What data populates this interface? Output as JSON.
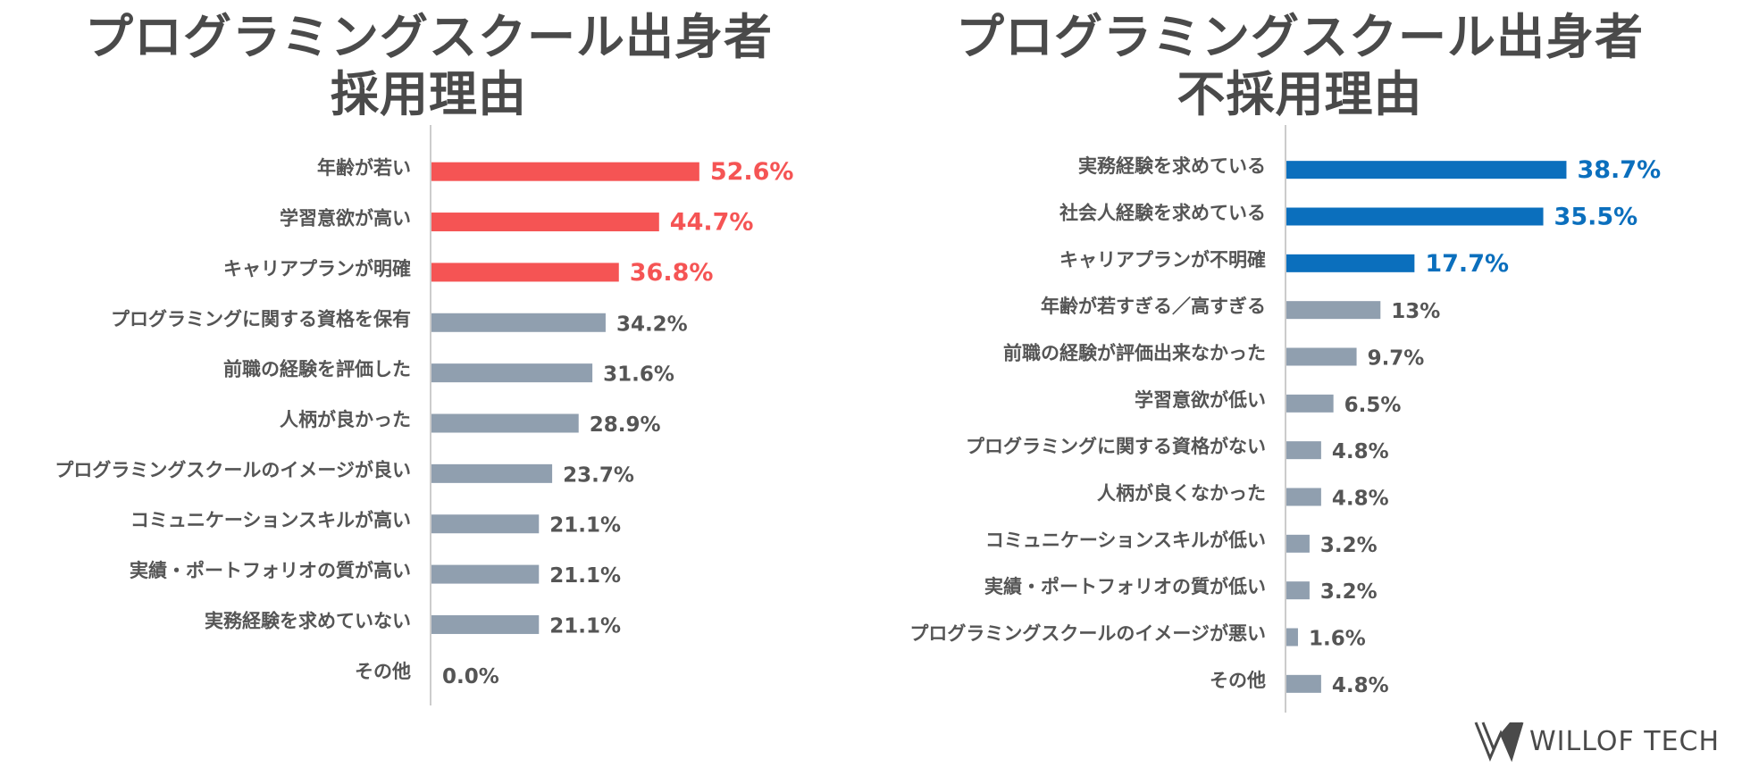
{
  "colors": {
    "grey_bar": "#909faf",
    "red": "#f55454",
    "blue": "#0b6fbd",
    "axis": "#cccccc",
    "label": "#555555"
  },
  "logo": {
    "text": "WILLOF TECH",
    "icon": "willof-tech-logo-icon"
  },
  "chart_data": [
    {
      "type": "bar",
      "orientation": "horizontal",
      "title": "プログラミングスクール出身者 採用理由",
      "title_lines": [
        "プログラミングスクール出身者",
        "採用理由"
      ],
      "highlight_color": "#f55454",
      "highlight_count": 3,
      "categories": [
        "年齢が若い",
        "学習意欲が高い",
        "キャリアプランが明確",
        "プログラミングに関する資格を保有",
        "前職の経験を評価した",
        "人柄が良かった",
        "プログラミングスクールのイメージが良い",
        "コミュニケーションスキルが高い",
        "実績・ポートフォリオの質が高い",
        "実務経験を求めていない",
        "その他"
      ],
      "values": [
        52.6,
        44.7,
        36.8,
        34.2,
        31.6,
        28.9,
        23.7,
        21.1,
        21.1,
        21.1,
        0.0
      ],
      "value_labels": [
        "52.6%",
        "44.7%",
        "36.8%",
        "34.2%",
        "31.6%",
        "28.9%",
        "23.7%",
        "21.1%",
        "21.1%",
        "21.1%",
        "0.0%"
      ],
      "xlim": [
        0,
        60
      ]
    },
    {
      "type": "bar",
      "orientation": "horizontal",
      "title": "プログラミングスクール出身者 不採用理由",
      "title_lines": [
        "プログラミングスクール出身者",
        "不採用理由"
      ],
      "highlight_color": "#0b6fbd",
      "highlight_count": 3,
      "categories": [
        "実務経験を求めている",
        "社会人経験を求めている",
        "キャリアプランが不明確",
        "年齢が若すぎる／高すぎる",
        "前職の経験が評価出来なかった",
        "学習意欲が低い",
        "プログラミングに関する資格がない",
        "人柄が良くなかった",
        "コミュニケーションスキルが低い",
        "実績・ポートフォリオの質が低い",
        "プログラミングスクールのイメージが悪い",
        "その他"
      ],
      "values": [
        38.7,
        35.5,
        17.7,
        13,
        9.7,
        6.5,
        4.8,
        4.8,
        3.2,
        3.2,
        1.6,
        4.8
      ],
      "value_labels": [
        "38.7%",
        "35.5%",
        "17.7%",
        "13%",
        "9.7%",
        "6.5%",
        "4.8%",
        "4.8%",
        "3.2%",
        "3.2%",
        "1.6%",
        "4.8%"
      ],
      "xlim": [
        0,
        40
      ]
    }
  ]
}
